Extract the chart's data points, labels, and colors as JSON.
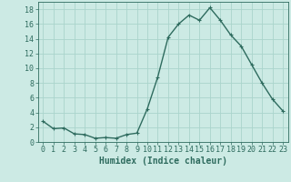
{
  "x": [
    0,
    1,
    2,
    3,
    4,
    5,
    6,
    7,
    8,
    9,
    10,
    11,
    12,
    13,
    14,
    15,
    16,
    17,
    18,
    19,
    20,
    21,
    22,
    23
  ],
  "y": [
    2.8,
    1.8,
    1.9,
    1.1,
    1.0,
    0.5,
    0.6,
    0.5,
    1.0,
    1.2,
    4.5,
    8.8,
    14.2,
    16.0,
    17.2,
    16.5,
    18.2,
    16.5,
    14.5,
    13.0,
    10.5,
    8.0,
    5.8,
    4.2
  ],
  "line_color": "#2e6b5e",
  "marker": "+",
  "background_color": "#cceae4",
  "grid_color": "#aad4cc",
  "xlabel": "Humidex (Indice chaleur)",
  "ylim": [
    0,
    19
  ],
  "xlim": [
    -0.5,
    23.5
  ],
  "yticks": [
    0,
    2,
    4,
    6,
    8,
    10,
    12,
    14,
    16,
    18
  ],
  "xtick_labels": [
    "0",
    "1",
    "2",
    "3",
    "4",
    "5",
    "6",
    "7",
    "8",
    "9",
    "10",
    "11",
    "12",
    "13",
    "14",
    "15",
    "16",
    "17",
    "18",
    "19",
    "20",
    "21",
    "22",
    "23"
  ],
  "font_color": "#2e6b5e",
  "xlabel_fontsize": 7,
  "tick_fontsize": 6,
  "linewidth": 1.0,
  "markersize": 3,
  "markerwidth": 0.8
}
